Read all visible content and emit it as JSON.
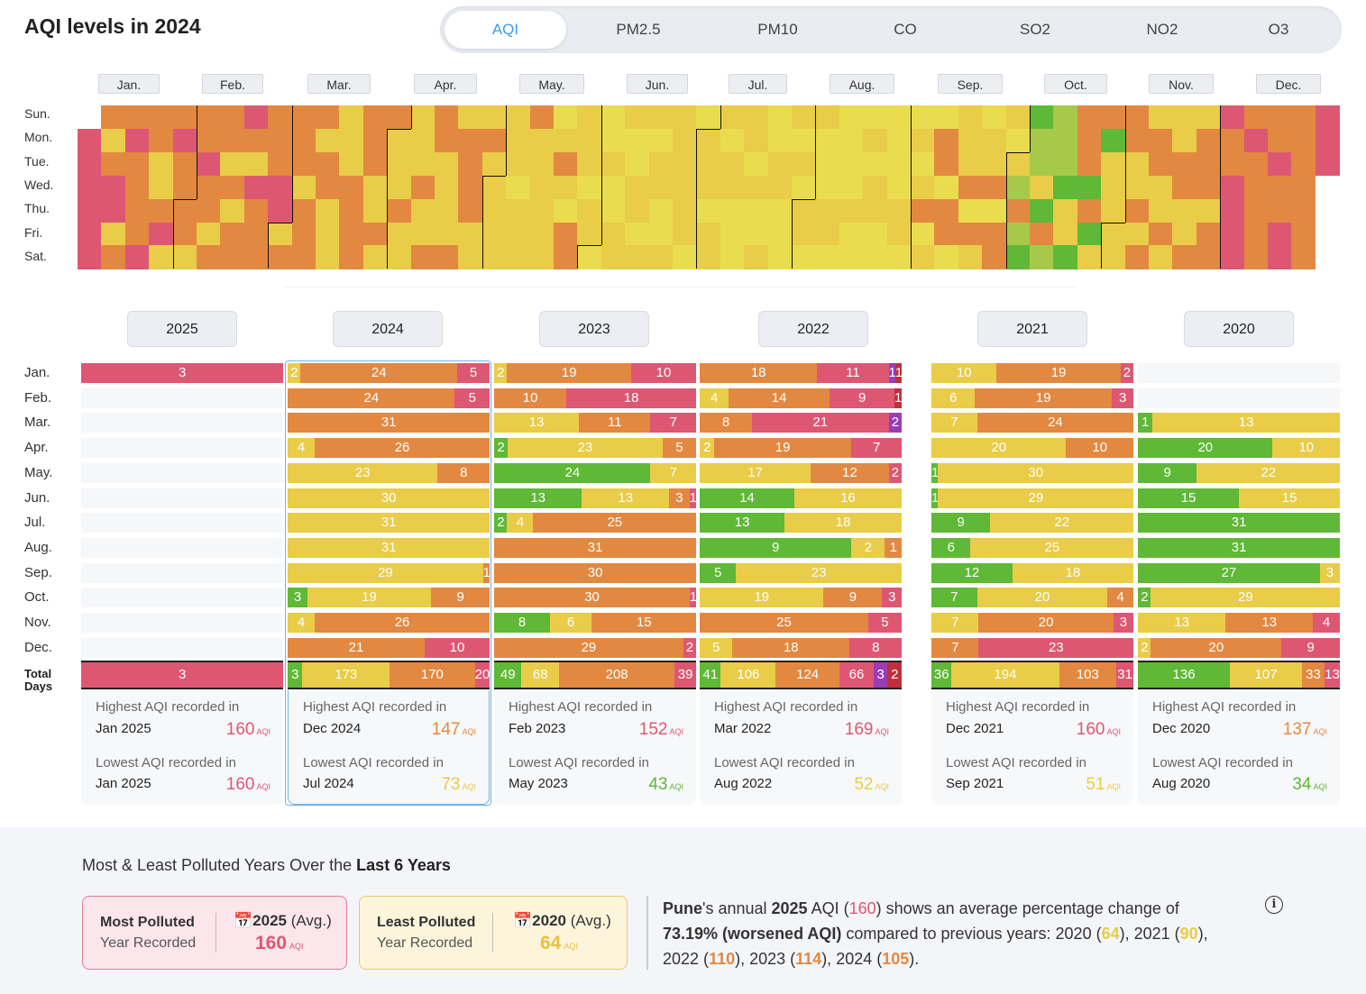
{
  "page_title": "AQI levels in 2024",
  "tabs": [
    "AQI",
    "PM2.5",
    "PM10",
    "CO",
    "SO2",
    "NO2",
    "O3"
  ],
  "active_tab": "AQI",
  "months": [
    "Jan.",
    "Feb.",
    "Mar.",
    "Apr.",
    "May.",
    "Jun.",
    "Jul.",
    "Aug.",
    "Sep.",
    "Oct.",
    "Nov.",
    "Dec."
  ],
  "weekdays": [
    "Sun.",
    "Mon.",
    "Tue.",
    "Wed.",
    "Thu.",
    "Fri.",
    "Sat."
  ],
  "colors": {
    "good": "#5fb836",
    "satisfactory": "#a7c94a",
    "moderate": "#e9cc48",
    "moderate_light": "#eadc4f",
    "poor": "#e38840",
    "very_poor": "#dd5773",
    "severe": "#9a3db4",
    "hazardous": "#c0303a"
  },
  "years": [
    "2025",
    "2024",
    "2023",
    "2022",
    "2021",
    "2020"
  ],
  "selected_year": "2024",
  "total_days_label": "Total Days",
  "aqi_unit": "AQI",
  "year_data": [
    {
      "year": "2025",
      "rows": [
        [
          [
            "very_poor",
            3
          ]
        ],
        [],
        [],
        [],
        [],
        [],
        [],
        [],
        [],
        [],
        [],
        []
      ],
      "total": [
        [
          "very_poor",
          3
        ]
      ],
      "high": {
        "label": "Highest AQI recorded in",
        "date": "Jan 2025",
        "value": "160",
        "color": "very_poor"
      },
      "low": {
        "label": "Lowest AQI recorded in",
        "date": "Jan 2025",
        "value": "160",
        "color": "very_poor"
      }
    },
    {
      "year": "2024",
      "rows": [
        [
          [
            "moderate",
            2
          ],
          [
            "poor",
            24
          ],
          [
            "very_poor",
            5
          ]
        ],
        [
          [
            "poor",
            24
          ],
          [
            "very_poor",
            5
          ]
        ],
        [
          [
            "poor",
            31
          ]
        ],
        [
          [
            "moderate",
            4
          ],
          [
            "poor",
            26
          ]
        ],
        [
          [
            "moderate",
            23
          ],
          [
            "poor",
            8
          ]
        ],
        [
          [
            "moderate",
            30
          ]
        ],
        [
          [
            "moderate",
            31
          ]
        ],
        [
          [
            "moderate",
            31
          ]
        ],
        [
          [
            "moderate",
            29
          ],
          [
            "poor",
            1
          ]
        ],
        [
          [
            "good",
            3
          ],
          [
            "moderate",
            19
          ],
          [
            "poor",
            9
          ]
        ],
        [
          [
            "moderate",
            4
          ],
          [
            "poor",
            26
          ]
        ],
        [
          [
            "poor",
            21
          ],
          [
            "very_poor",
            10
          ]
        ]
      ],
      "total": [
        [
          "good",
          3
        ],
        [
          "moderate",
          173
        ],
        [
          "poor",
          170
        ],
        [
          "very_poor",
          20
        ]
      ],
      "high": {
        "label": "Highest AQI recorded in",
        "date": "Dec 2024",
        "value": "147",
        "color": "poor"
      },
      "low": {
        "label": "Lowest AQI recorded in",
        "date": "Jul 2024",
        "value": "73",
        "color": "moderate"
      }
    },
    {
      "year": "2023",
      "rows": [
        [
          [
            "moderate",
            2
          ],
          [
            "poor",
            19
          ],
          [
            "very_poor",
            10
          ]
        ],
        [
          [
            "poor",
            10
          ],
          [
            "very_poor",
            18
          ]
        ],
        [
          [
            "moderate",
            13
          ],
          [
            "poor",
            11
          ],
          [
            "very_poor",
            7
          ]
        ],
        [
          [
            "good",
            2
          ],
          [
            "moderate",
            23
          ],
          [
            "poor",
            5
          ]
        ],
        [
          [
            "good",
            24
          ],
          [
            "moderate",
            7
          ]
        ],
        [
          [
            "good",
            13
          ],
          [
            "moderate",
            13
          ],
          [
            "poor",
            3
          ],
          [
            "very_poor",
            1
          ]
        ],
        [
          [
            "good",
            2
          ],
          [
            "moderate",
            4
          ],
          [
            "poor",
            25
          ]
        ],
        [
          [
            "poor",
            31
          ]
        ],
        [
          [
            "poor",
            30
          ]
        ],
        [
          [
            "poor",
            30
          ],
          [
            "very_poor",
            1
          ]
        ],
        [
          [
            "good",
            8
          ],
          [
            "moderate",
            6
          ],
          [
            "poor",
            15
          ]
        ],
        [
          [
            "poor",
            29
          ],
          [
            "very_poor",
            2
          ]
        ]
      ],
      "total": [
        [
          "good",
          49
        ],
        [
          "moderate",
          68
        ],
        [
          "poor",
          208
        ],
        [
          "very_poor",
          39
        ]
      ],
      "high": {
        "label": "Highest AQI recorded in",
        "date": "Feb 2023",
        "value": "152",
        "color": "very_poor"
      },
      "low": {
        "label": "Lowest AQI recorded in",
        "date": "May 2023",
        "value": "43",
        "color": "good"
      }
    },
    {
      "year": "2022",
      "rows": [
        [
          [
            "poor",
            18
          ],
          [
            "very_poor",
            11
          ],
          [
            "severe",
            1
          ],
          [
            "hazardous",
            1
          ]
        ],
        [
          [
            "moderate",
            4
          ],
          [
            "poor",
            14
          ],
          [
            "very_poor",
            9
          ],
          [
            "hazardous",
            1
          ]
        ],
        [
          [
            "poor",
            8
          ],
          [
            "very_poor",
            21
          ],
          [
            "severe",
            2
          ]
        ],
        [
          [
            "moderate",
            2
          ],
          [
            "poor",
            19
          ],
          [
            "very_poor",
            7
          ]
        ],
        [
          [
            "moderate",
            17
          ],
          [
            "poor",
            12
          ],
          [
            "very_poor",
            2
          ]
        ],
        [
          [
            "good",
            14
          ],
          [
            "moderate",
            16
          ]
        ],
        [
          [
            "good",
            13
          ],
          [
            "moderate",
            18
          ]
        ],
        [
          [
            "good",
            9
          ],
          [
            "moderate",
            2
          ],
          [
            "poor",
            1
          ]
        ],
        [
          [
            "good",
            5
          ],
          [
            "moderate",
            23
          ]
        ],
        [
          [
            "moderate",
            19
          ],
          [
            "poor",
            9
          ],
          [
            "very_poor",
            3
          ]
        ],
        [
          [
            "poor",
            25
          ],
          [
            "very_poor",
            5
          ]
        ],
        [
          [
            "moderate",
            5
          ],
          [
            "poor",
            18
          ],
          [
            "very_poor",
            8
          ]
        ]
      ],
      "total": [
        [
          "good",
          41
        ],
        [
          "moderate",
          106
        ],
        [
          "poor",
          124
        ],
        [
          "very_poor",
          66
        ],
        [
          "severe",
          3
        ],
        [
          "hazardous",
          2
        ]
      ],
      "high": {
        "label": "Highest AQI recorded in",
        "date": "Mar 2022",
        "value": "169",
        "color": "very_poor"
      },
      "low": {
        "label": "Lowest AQI recorded in",
        "date": "Aug 2022",
        "value": "52",
        "color": "moderate"
      }
    },
    {
      "year": "2021",
      "rows": [
        [
          [
            "moderate",
            10
          ],
          [
            "poor",
            19
          ],
          [
            "very_poor",
            2
          ]
        ],
        [
          [
            "moderate",
            6
          ],
          [
            "poor",
            19
          ],
          [
            "very_poor",
            3
          ]
        ],
        [
          [
            "moderate",
            7
          ],
          [
            "poor",
            24
          ]
        ],
        [
          [
            "moderate",
            20
          ],
          [
            "poor",
            10
          ]
        ],
        [
          [
            "good",
            1
          ],
          [
            "moderate",
            30
          ]
        ],
        [
          [
            "good",
            1
          ],
          [
            "moderate",
            29
          ]
        ],
        [
          [
            "good",
            9
          ],
          [
            "moderate",
            22
          ]
        ],
        [
          [
            "good",
            6
          ],
          [
            "moderate",
            25
          ]
        ],
        [
          [
            "good",
            12
          ],
          [
            "moderate",
            18
          ]
        ],
        [
          [
            "good",
            7
          ],
          [
            "moderate",
            20
          ],
          [
            "poor",
            4
          ]
        ],
        [
          [
            "moderate",
            7
          ],
          [
            "poor",
            20
          ],
          [
            "very_poor",
            3
          ]
        ],
        [
          [
            "poor",
            7
          ],
          [
            "very_poor",
            23
          ]
        ]
      ],
      "total": [
        [
          "good",
          36
        ],
        [
          "moderate",
          194
        ],
        [
          "poor",
          103
        ],
        [
          "very_poor",
          31
        ]
      ],
      "high": {
        "label": "Highest AQI recorded in",
        "date": "Dec 2021",
        "value": "160",
        "color": "very_poor"
      },
      "low": {
        "label": "Lowest AQI recorded in",
        "date": "Sep 2021",
        "value": "51",
        "color": "moderate"
      }
    },
    {
      "year": "2020",
      "rows": [
        [],
        [],
        [
          [
            "good",
            1
          ],
          [
            "moderate",
            13
          ]
        ],
        [
          [
            "good",
            20
          ],
          [
            "moderate",
            10
          ]
        ],
        [
          [
            "good",
            9
          ],
          [
            "moderate",
            22
          ]
        ],
        [
          [
            "good",
            15
          ],
          [
            "moderate",
            15
          ]
        ],
        [
          [
            "good",
            31
          ]
        ],
        [
          [
            "good",
            31
          ]
        ],
        [
          [
            "good",
            27
          ],
          [
            "moderate",
            3
          ]
        ],
        [
          [
            "good",
            2
          ],
          [
            "moderate",
            29
          ]
        ],
        [
          [
            "moderate",
            13
          ],
          [
            "poor",
            13
          ],
          [
            "very_poor",
            4
          ]
        ],
        [
          [
            "moderate",
            2
          ],
          [
            "poor",
            20
          ],
          [
            "very_poor",
            9
          ]
        ]
      ],
      "total": [
        [
          "good",
          136
        ],
        [
          "moderate",
          107
        ],
        [
          "poor",
          33
        ],
        [
          "very_poor",
          13
        ]
      ],
      "high": {
        "label": "Highest AQI recorded in",
        "date": "Dec 2020",
        "value": "137",
        "color": "poor"
      },
      "low": {
        "label": "Lowest AQI recorded in",
        "date": "Aug 2020",
        "value": "34",
        "color": "good"
      }
    }
  ],
  "bottom": {
    "title_prefix": "Most & Least Polluted Years Over the ",
    "title_bold": "Last 6 Years",
    "most": {
      "label1": "Most Polluted",
      "label2": "Year Recorded",
      "year": "2025",
      "avg_label": "(Avg.)",
      "value": "160"
    },
    "least": {
      "label1": "Least Polluted",
      "label2": "Year Recorded",
      "year": "2020",
      "avg_label": "(Avg.)",
      "value": "64"
    },
    "summary": {
      "city": "Pune",
      "mid1": "'s annual ",
      "year": "2025",
      "mid2": " AQI (",
      "aqi": "160",
      "mid3": ") shows an average percentage change of ",
      "change": "73.19% (worsened AQI)",
      "mid4": " compared to previous years: ",
      "prev": [
        {
          "year": "2020",
          "value": "64",
          "color": "moderate"
        },
        {
          "year": "2021",
          "value": "90",
          "color": "moderate"
        },
        {
          "year": "2022",
          "value": "110",
          "color": "poor"
        },
        {
          "year": "2023",
          "value": "114",
          "color": "poor"
        },
        {
          "year": "2024",
          "value": "105",
          "color": "poor"
        }
      ]
    }
  }
}
